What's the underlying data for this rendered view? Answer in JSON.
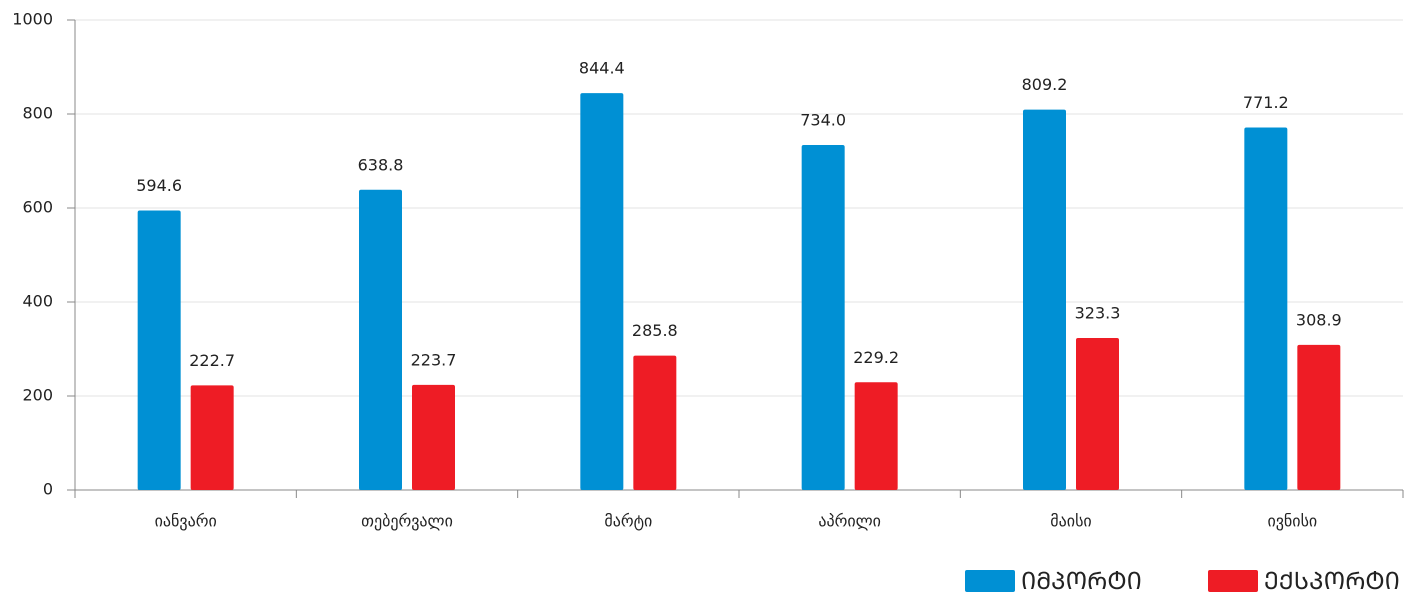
{
  "chart_data": {
    "type": "bar",
    "categories": [
      "იანვარი",
      "თებერვალი",
      "მარტი",
      "აპრილი",
      "მაისი",
      "ივნისი"
    ],
    "series": [
      {
        "name": "ᲘᲛᲞᲝᲠᲢᲘ",
        "color": "#0090d4",
        "values": [
          594.6,
          638.8,
          844.4,
          734.0,
          809.2,
          771.2
        ],
        "value_labels": [
          "594.6",
          "638.8",
          "844.4",
          "734.0",
          "809.2",
          "771.2"
        ]
      },
      {
        "name": "ᲔᲥᲡᲞᲝᲠᲢᲘ",
        "color": "#ee1c25",
        "values": [
          222.7,
          223.7,
          285.8,
          229.2,
          323.3,
          308.9
        ],
        "value_labels": [
          "222.7",
          "223.7",
          "285.8",
          "229.2",
          "323.3",
          "308.9"
        ]
      }
    ],
    "ylim": [
      0,
      1000
    ],
    "yticks": [
      0,
      200,
      400,
      600,
      800,
      1000
    ],
    "grid": true,
    "legend": "bottom-right"
  }
}
